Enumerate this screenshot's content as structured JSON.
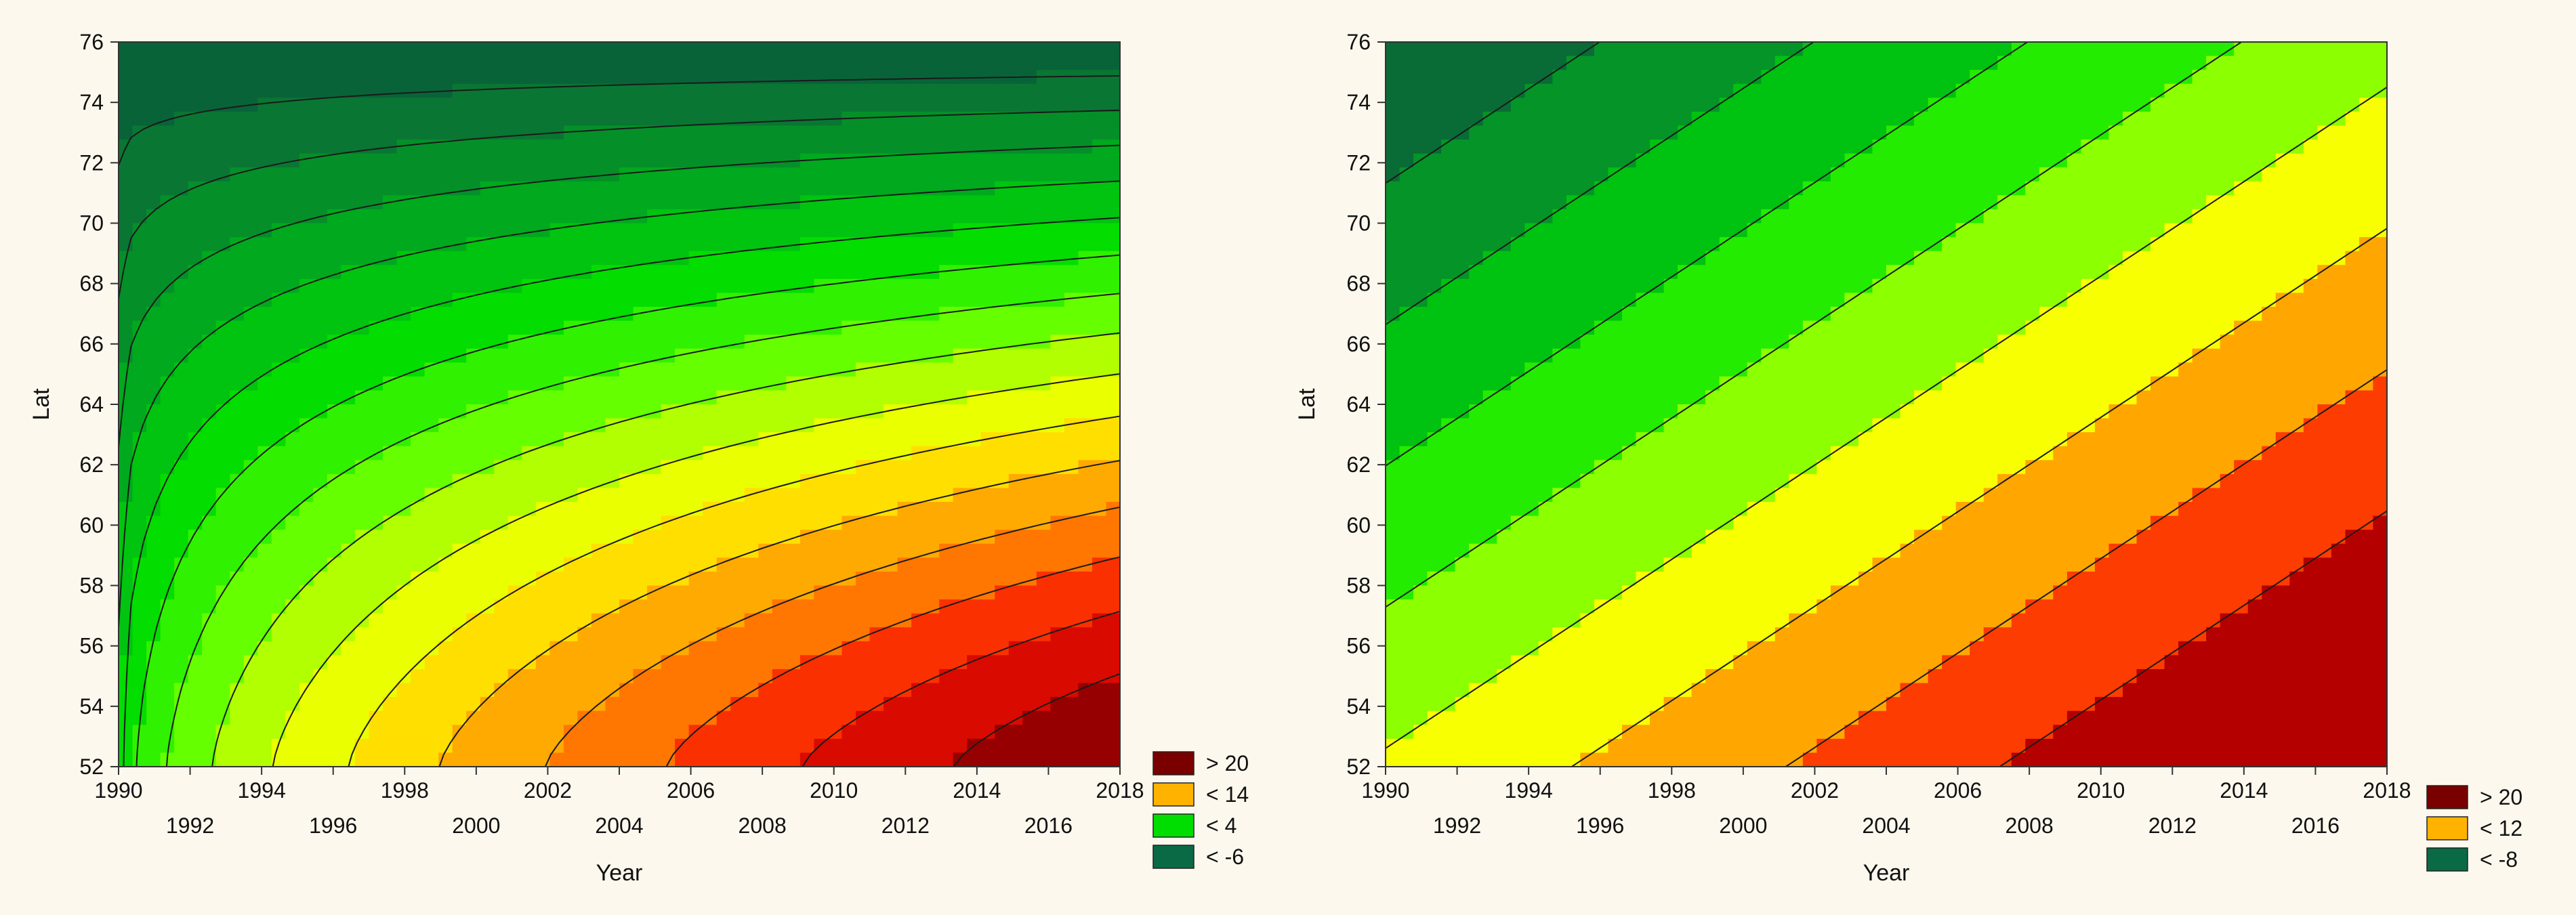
{
  "chart_data": [
    {
      "type": "contour",
      "title": "",
      "xlabel": "Year",
      "ylabel": "Lat",
      "xlim": [
        1990,
        2018
      ],
      "ylim": [
        52,
        76
      ],
      "x_ticks_upper": [
        "1990",
        "1994",
        "1998",
        "2002",
        "2006",
        "2010",
        "2014",
        "2018"
      ],
      "x_ticks_lower": [
        "1992",
        "1996",
        "2000",
        "2004",
        "2008",
        "2012",
        "2016"
      ],
      "y_ticks": [
        "52",
        "54",
        "56",
        "58",
        "60",
        "62",
        "64",
        "66",
        "68",
        "70",
        "72",
        "74",
        "76"
      ],
      "model": {
        "form": "curved",
        "z_min": -6.6,
        "z_max": 22,
        "levels": 16
      },
      "legend": [
        {
          "label": "> 20",
          "color": "#7a0000"
        },
        {
          "label": "< 14",
          "color": "#ffb300"
        },
        {
          "label": "< 4",
          "color": "#00dd00"
        },
        {
          "label": "< -6",
          "color": "#0a6a45"
        }
      ]
    },
    {
      "type": "contour",
      "title": "",
      "xlabel": "Year",
      "ylabel": "Lat",
      "xlim": [
        1990,
        2018
      ],
      "ylim": [
        52,
        76
      ],
      "x_ticks_upper": [
        "1990",
        "1994",
        "1998",
        "2002",
        "2006",
        "2010",
        "2014",
        "2018"
      ],
      "x_ticks_lower": [
        "1992",
        "1996",
        "2000",
        "2004",
        "2008",
        "2012",
        "2016"
      ],
      "y_ticks": [
        "52",
        "54",
        "56",
        "58",
        "60",
        "62",
        "64",
        "66",
        "68",
        "70",
        "72",
        "74",
        "76"
      ],
      "model": {
        "form": "linear",
        "z_min": -8.5,
        "z_max": 24,
        "levels": 9
      },
      "legend": [
        {
          "label": "> 20",
          "color": "#7a0000"
        },
        {
          "label": "< 12",
          "color": "#ffb300"
        },
        {
          "label": "< -8",
          "color": "#0a6a45"
        }
      ]
    }
  ]
}
